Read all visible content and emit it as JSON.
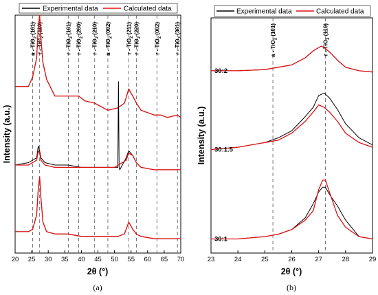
{
  "chart_data": [
    {
      "panel": "(a)",
      "type": "line",
      "xlabel": "2θ (°)",
      "ylabel": "Intensity (a.u.)",
      "xlim": [
        20,
        70
      ],
      "xticks": [
        20,
        25,
        30,
        35,
        40,
        45,
        50,
        55,
        60,
        65,
        70
      ],
      "legend": {
        "placement": "top",
        "entries": [
          "Experimental data",
          "Calculated data"
        ]
      },
      "series_colors": {
        "experimental": "#000000",
        "calculated": "#e01010"
      },
      "reference_lines": [
        {
          "x": 25.3,
          "label": "a - TiO2 (101)"
        },
        {
          "x": 27.4,
          "label": "r - TiO2 (110)"
        },
        {
          "x": 36.1,
          "label": "r - TiO2 (101)"
        },
        {
          "x": 39.2,
          "label": "r - TiO2 (200)"
        },
        {
          "x": 44.0,
          "label": "r - TiO2 (210)"
        },
        {
          "x": 48.0,
          "label": "a - TiO2 (002)"
        },
        {
          "x": 54.3,
          "label": "r - TiO2 (211)"
        },
        {
          "x": 56.6,
          "label": "r - TiO2 (220)"
        },
        {
          "x": 62.8,
          "label": "r - TiO2 (002)"
        },
        {
          "x": 69.0,
          "label": "r - TiO2 (301)"
        }
      ],
      "series": [
        {
          "name": "Experimental data",
          "trace": "top",
          "x": [
            20,
            24,
            25.3,
            26.5,
            27.0,
            27.4,
            27.8,
            28.4,
            29.5,
            32,
            36.1,
            39.2,
            41,
            44,
            48,
            51,
            53,
            54.3,
            55.5,
            56.6,
            58,
            62,
            64,
            66,
            69,
            70
          ],
          "y": [
            0.7,
            0.7,
            0.74,
            0.82,
            0.95,
            1.0,
            0.9,
            0.8,
            0.73,
            0.66,
            0.66,
            0.66,
            0.64,
            0.63,
            0.6,
            0.61,
            0.63,
            0.69,
            0.66,
            0.63,
            0.6,
            0.58,
            0.58,
            0.57,
            0.58,
            0.57
          ]
        },
        {
          "name": "Calculated data",
          "trace": "top",
          "x": [
            20,
            24,
            25.3,
            26.5,
            27.0,
            27.4,
            27.8,
            28.4,
            29.5,
            32,
            36.1,
            39.2,
            41,
            44,
            48,
            51,
            53,
            54.3,
            55.5,
            56.6,
            58,
            62,
            64,
            66,
            69,
            70
          ],
          "y": [
            0.7,
            0.7,
            0.74,
            0.82,
            0.95,
            1.0,
            0.9,
            0.8,
            0.73,
            0.66,
            0.66,
            0.66,
            0.64,
            0.63,
            0.6,
            0.61,
            0.63,
            0.69,
            0.66,
            0.63,
            0.6,
            0.58,
            0.58,
            0.57,
            0.58,
            0.57
          ]
        },
        {
          "name": "Experimental data",
          "trace": "middle",
          "x": [
            20,
            24,
            26.5,
            27.0,
            27.4,
            27.8,
            29,
            32,
            36,
            40,
            44,
            48,
            50,
            51.0,
            51.2,
            51.4,
            51.6,
            53.5,
            54.3,
            55.5,
            56.6,
            58,
            62,
            66,
            70
          ],
          "y": [
            0.37,
            0.38,
            0.4,
            0.45,
            0.43,
            0.4,
            0.38,
            0.37,
            0.37,
            0.36,
            0.36,
            0.36,
            0.36,
            0.36,
            0.72,
            0.36,
            0.35,
            0.4,
            0.43,
            0.41,
            0.38,
            0.36,
            0.35,
            0.35,
            0.35
          ]
        },
        {
          "name": "Calculated data",
          "trace": "middle",
          "x": [
            20,
            24,
            26.5,
            27.0,
            27.4,
            27.8,
            29,
            32,
            36,
            40,
            44,
            48,
            50,
            53.5,
            54.3,
            55.5,
            56.6,
            58,
            62,
            66,
            70
          ],
          "y": [
            0.37,
            0.37,
            0.39,
            0.43,
            0.42,
            0.39,
            0.37,
            0.36,
            0.36,
            0.36,
            0.36,
            0.36,
            0.36,
            0.39,
            0.42,
            0.41,
            0.38,
            0.36,
            0.35,
            0.35,
            0.35
          ]
        },
        {
          "name": "Experimental data",
          "trace": "bottom",
          "x": [
            20,
            24,
            25.3,
            26.5,
            27.0,
            27.4,
            27.8,
            28.4,
            29.5,
            32,
            36,
            40,
            44,
            48,
            51,
            53,
            54.3,
            55.5,
            56.6,
            58,
            62,
            66,
            70
          ],
          "y": [
            0.09,
            0.09,
            0.1,
            0.16,
            0.27,
            0.32,
            0.23,
            0.13,
            0.09,
            0.08,
            0.08,
            0.07,
            0.07,
            0.07,
            0.07,
            0.08,
            0.13,
            0.1,
            0.08,
            0.07,
            0.06,
            0.06,
            0.06
          ]
        },
        {
          "name": "Calculated data",
          "trace": "bottom",
          "x": [
            20,
            24,
            25.3,
            26.5,
            27.0,
            27.4,
            27.8,
            28.4,
            29.5,
            32,
            36,
            40,
            44,
            48,
            51,
            53,
            54.3,
            55.5,
            56.6,
            58,
            62,
            66,
            70
          ],
          "y": [
            0.09,
            0.09,
            0.1,
            0.16,
            0.27,
            0.32,
            0.23,
            0.13,
            0.09,
            0.08,
            0.08,
            0.07,
            0.07,
            0.07,
            0.07,
            0.08,
            0.13,
            0.1,
            0.08,
            0.07,
            0.06,
            0.06,
            0.06
          ]
        }
      ]
    },
    {
      "panel": "(b)",
      "type": "line",
      "xlabel": "2θ (°)",
      "ylabel": "Intensity (a.u.)",
      "xlim": [
        23,
        29
      ],
      "xticks": [
        23,
        24,
        25,
        26,
        27,
        28,
        29
      ],
      "legend": {
        "placement": "top",
        "entries": [
          "Experimental data",
          "Calculated data"
        ]
      },
      "series_colors": {
        "experimental": "#000000",
        "calculated": "#e01010"
      },
      "reference_lines": [
        {
          "x": 25.3,
          "label": "a - TiO2 (101)"
        },
        {
          "x": 27.25,
          "label": "r - TiO2 (110)"
        }
      ],
      "samples": [
        "30:2",
        "30:1.5",
        "30:1"
      ],
      "series": [
        {
          "name": "Experimental data",
          "trace": "30:2",
          "x": [
            23,
            24,
            25,
            25.5,
            26,
            26.5,
            26.8,
            27.1,
            27.25,
            27.45,
            27.7,
            28,
            28.5,
            29
          ],
          "y": [
            0.775,
            0.775,
            0.78,
            0.79,
            0.8,
            0.83,
            0.86,
            0.88,
            0.87,
            0.85,
            0.82,
            0.79,
            0.775,
            0.77
          ]
        },
        {
          "name": "Calculated data",
          "trace": "30:2",
          "x": [
            23,
            24,
            25,
            25.5,
            26,
            26.5,
            26.8,
            27.1,
            27.25,
            27.45,
            27.7,
            28,
            28.5,
            29
          ],
          "y": [
            0.775,
            0.775,
            0.78,
            0.79,
            0.8,
            0.83,
            0.86,
            0.88,
            0.87,
            0.85,
            0.82,
            0.79,
            0.775,
            0.77
          ]
        },
        {
          "name": "Experimental data",
          "trace": "30:1.5",
          "x": [
            23,
            24,
            25,
            25.5,
            26,
            26.5,
            26.8,
            27.0,
            27.2,
            27.4,
            27.7,
            28,
            28.5,
            29
          ],
          "y": [
            0.44,
            0.45,
            0.47,
            0.49,
            0.52,
            0.58,
            0.62,
            0.67,
            0.68,
            0.66,
            0.61,
            0.55,
            0.49,
            0.46
          ]
        },
        {
          "name": "Calculated data",
          "trace": "30:1.5",
          "x": [
            23,
            24,
            25,
            25.5,
            26,
            26.5,
            26.8,
            27.0,
            27.2,
            27.4,
            27.7,
            28,
            28.5,
            29
          ],
          "y": [
            0.44,
            0.45,
            0.47,
            0.48,
            0.51,
            0.56,
            0.6,
            0.63,
            0.62,
            0.6,
            0.56,
            0.51,
            0.47,
            0.45
          ]
        },
        {
          "name": "Experimental data",
          "trace": "30:1",
          "x": [
            23,
            24,
            25,
            25.5,
            26,
            26.5,
            26.8,
            27.0,
            27.15,
            27.25,
            27.4,
            27.7,
            28,
            28.5,
            29
          ],
          "y": [
            0.06,
            0.06,
            0.07,
            0.08,
            0.1,
            0.15,
            0.21,
            0.26,
            0.28,
            0.28,
            0.25,
            0.2,
            0.14,
            0.07,
            0.06
          ]
        },
        {
          "name": "Calculated data",
          "trace": "30:1",
          "x": [
            23,
            24,
            25,
            25.5,
            26,
            26.5,
            26.8,
            27.0,
            27.15,
            27.25,
            27.4,
            27.7,
            28,
            28.5,
            29
          ],
          "y": [
            0.06,
            0.06,
            0.07,
            0.08,
            0.1,
            0.14,
            0.18,
            0.27,
            0.31,
            0.31,
            0.26,
            0.16,
            0.11,
            0.07,
            0.06
          ]
        }
      ]
    }
  ]
}
